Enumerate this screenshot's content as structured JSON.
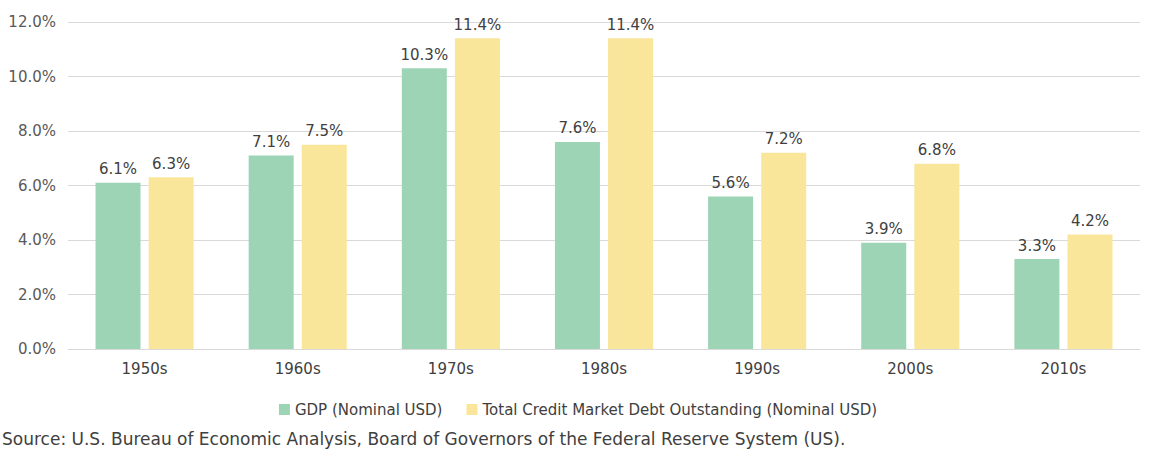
{
  "chart_data": {
    "type": "bar",
    "categories": [
      "1950s",
      "1960s",
      "1970s",
      "1980s",
      "1990s",
      "2000s",
      "2010s"
    ],
    "series": [
      {
        "name": "GDP (Nominal USD)",
        "color": "#9dd4b5",
        "values": [
          6.1,
          7.1,
          10.3,
          7.6,
          5.6,
          3.9,
          3.3
        ],
        "value_labels": [
          "6.1%",
          "7.1%",
          "10.3%",
          "7.6%",
          "5.6%",
          "3.9%",
          "3.3%"
        ]
      },
      {
        "name": "Total Credit Market Debt Outstanding (Nominal USD)",
        "color": "#f9e69b",
        "values": [
          6.3,
          7.5,
          11.4,
          11.4,
          7.2,
          6.8,
          4.2
        ],
        "value_labels": [
          "6.3%",
          "7.5%",
          "11.4%",
          "11.4%",
          "7.2%",
          "6.8%",
          "4.2%"
        ]
      }
    ],
    "ylim": [
      0,
      12
    ],
    "yticks": [
      {
        "value": 0,
        "label": "0.0%"
      },
      {
        "value": 2,
        "label": "2.0%"
      },
      {
        "value": 4,
        "label": "4.0%"
      },
      {
        "value": 6,
        "label": "6.0%"
      },
      {
        "value": 8,
        "label": "8.0%"
      },
      {
        "value": 10,
        "label": "10.0%"
      },
      {
        "value": 12,
        "label": "12.0%"
      }
    ],
    "grid": true,
    "legend": "bottom",
    "data_labels": true,
    "annotations": [
      "Source: U.S. Bureau of Economic Analysis, Board of Governors of the Federal Reserve System (US)."
    ]
  }
}
